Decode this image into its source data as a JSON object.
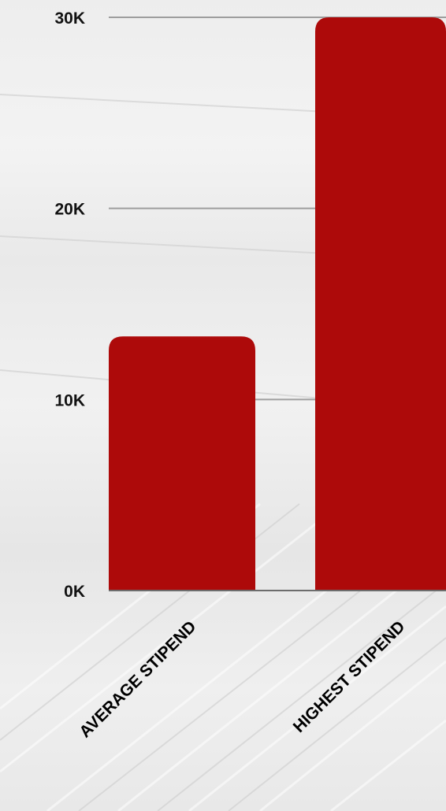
{
  "chart_data": {
    "type": "bar",
    "categories": [
      "AVERAGE STIPEND",
      "HIGHEST STIPEND"
    ],
    "values": [
      13300,
      30000
    ],
    "ylim": [
      0,
      30000
    ],
    "yticks": [
      "0K",
      "10K",
      "20K",
      "30K"
    ],
    "ytick_values": [
      0,
      10000,
      20000,
      30000
    ],
    "grid": true,
    "bar_color": "#ad0a0a",
    "grid_color": "#9e9e9e",
    "title": "",
    "xlabel": "",
    "ylabel": ""
  }
}
